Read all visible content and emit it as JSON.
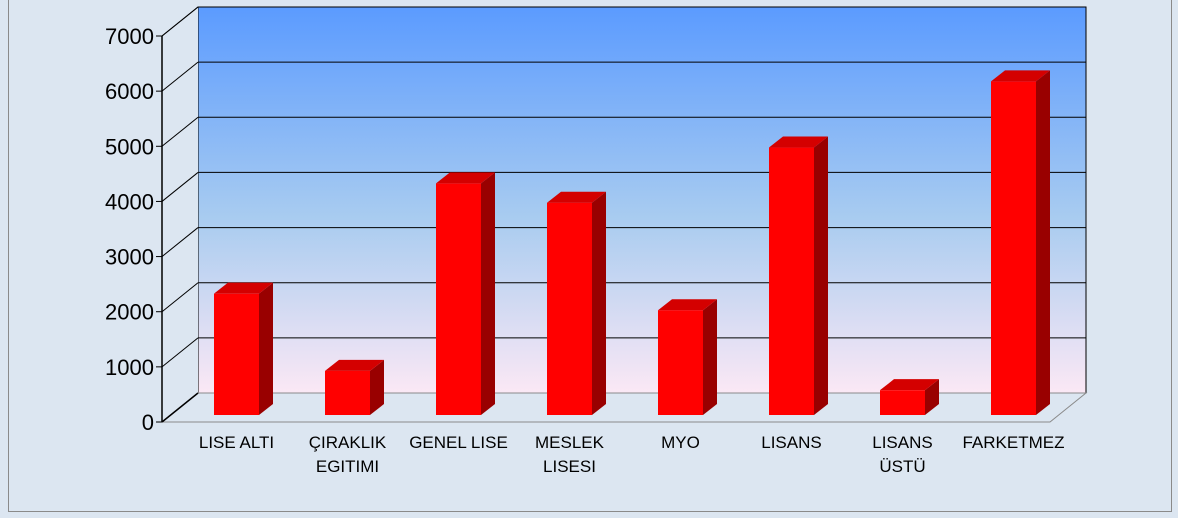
{
  "chart_data": {
    "type": "bar",
    "title": "",
    "xlabel": "",
    "ylabel": "",
    "categories": [
      [
        "LISE ALTI"
      ],
      [
        "ÇIRAKLIK",
        "EGITIMI"
      ],
      [
        "GENEL LISE"
      ],
      [
        "MESLEK",
        "LISESI"
      ],
      [
        "MYO"
      ],
      [
        "LISANS"
      ],
      [
        "LISANS",
        "ÜSTÜ"
      ],
      [
        "FARKETMEZ"
      ]
    ],
    "values": [
      2200,
      800,
      4200,
      3850,
      1900,
      4850,
      450,
      6050
    ],
    "ylim": [
      0,
      7000
    ],
    "yticks": [
      "0",
      "1000",
      "2000",
      "3000",
      "4000",
      "5000",
      "6000",
      "7000"
    ],
    "grid": true,
    "legend": "none",
    "colors": {
      "bar_front": "#ff0000",
      "bar_side": "#990000",
      "bar_top": "#d40000",
      "wall_top": "#5b9bff",
      "wall_bottom": "#fbe8f5",
      "floor": "#dce6f1"
    }
  }
}
